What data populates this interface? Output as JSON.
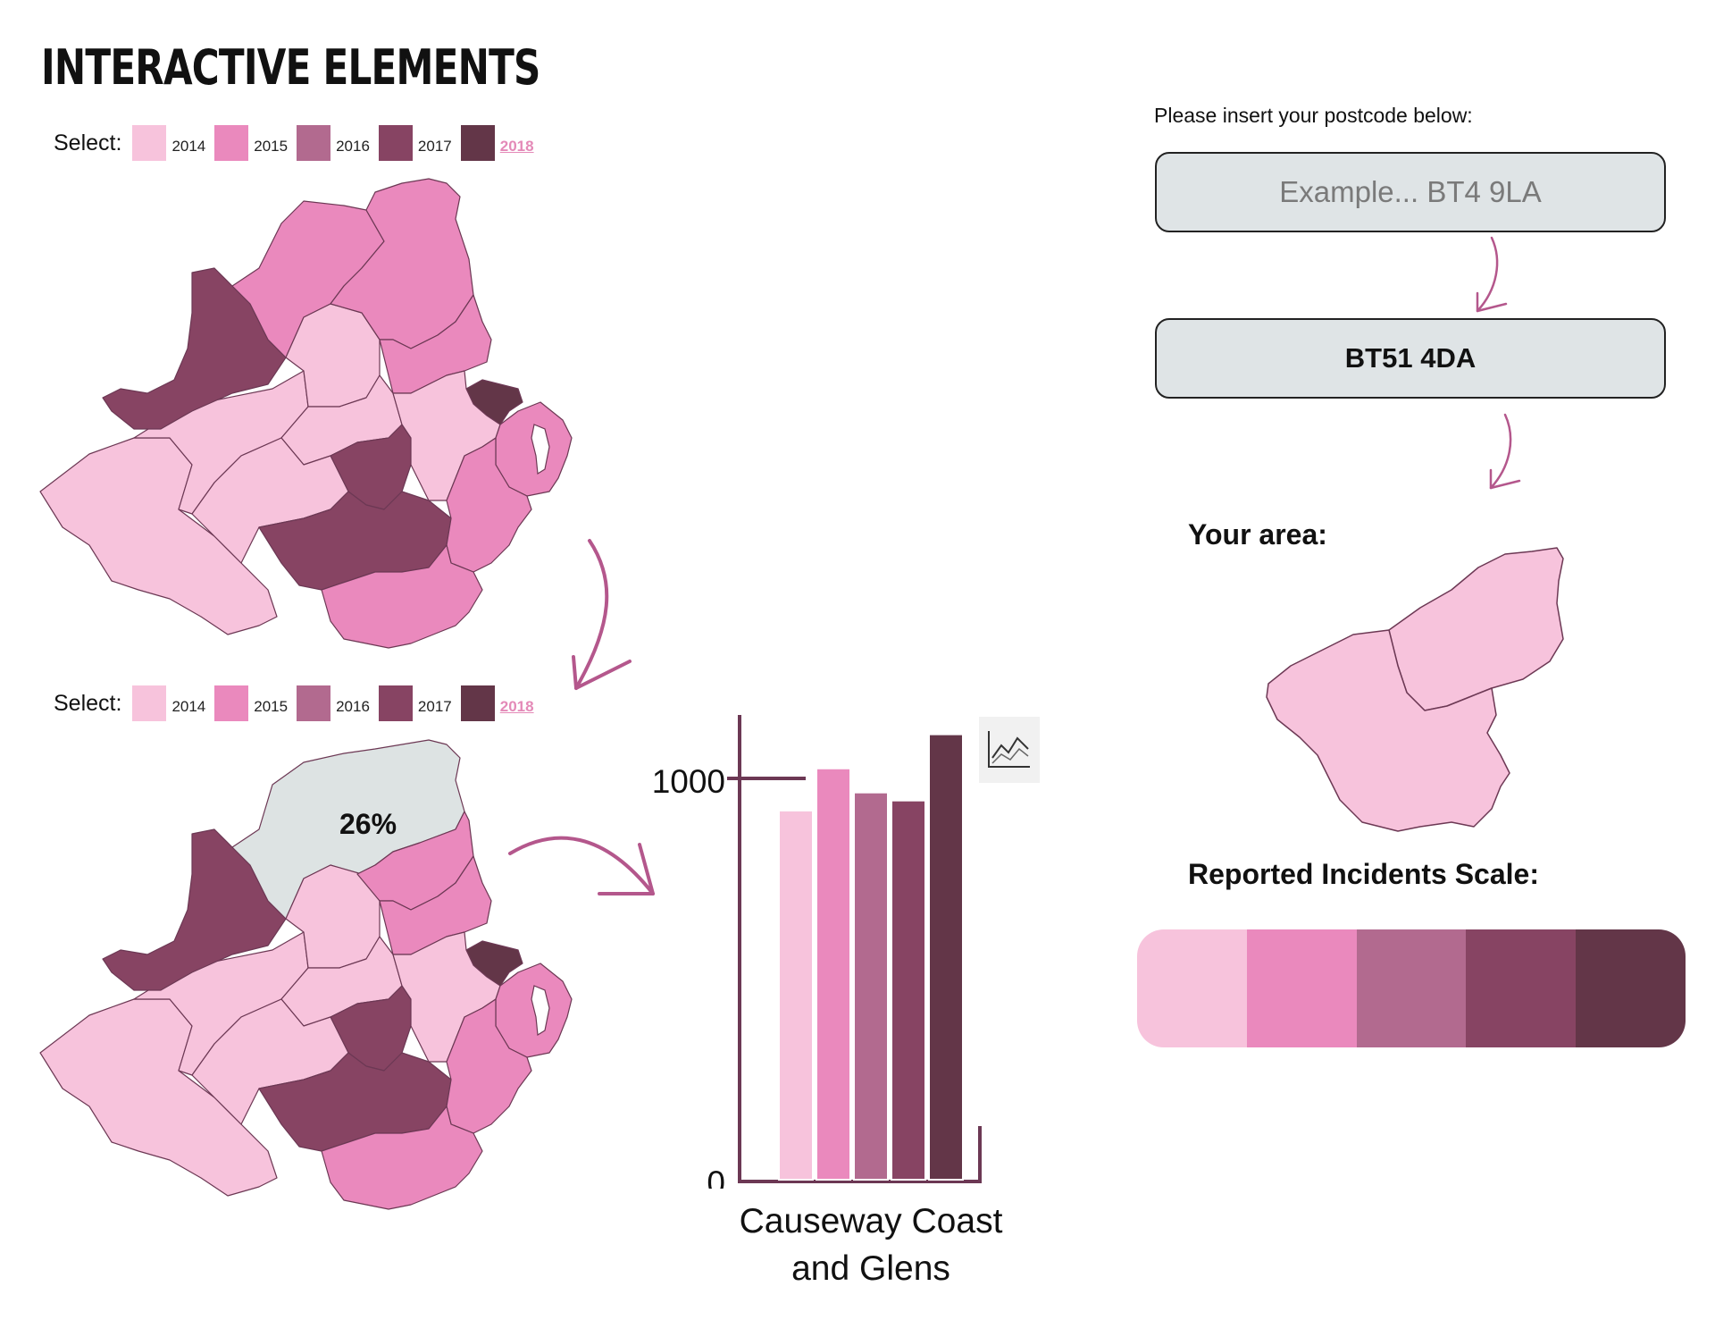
{
  "page": {
    "title": "INTERACTIVE ELEMENTS"
  },
  "colors": {
    "level1": "#f7c3dc",
    "level2": "#ea89bd",
    "level3": "#b26a8f",
    "level4": "#874463",
    "level5": "#633648",
    "highlight": "#dde3e3",
    "border": "#6c3854",
    "arrow": "#b4578c"
  },
  "year_selector": {
    "label": "Select:",
    "options": [
      {
        "year": "2014",
        "color": "#f7c3dc"
      },
      {
        "year": "2015",
        "color": "#ea89bd"
      },
      {
        "year": "2016",
        "color": "#b26a8f"
      },
      {
        "year": "2017",
        "color": "#874463"
      },
      {
        "year": "2018",
        "color": "#633648"
      }
    ],
    "selected": "2018"
  },
  "postcode": {
    "prompt": "Please insert your postcode below:",
    "placeholder": "Example... BT4 9LA",
    "result": "BT51 4DA"
  },
  "area": {
    "heading": "Your area:",
    "highlight_percent": "26%"
  },
  "scale": {
    "heading": "Reported Incidents Scale:",
    "colors": [
      "#f7c3dc",
      "#ea89bd",
      "#b26a8f",
      "#874463",
      "#633648"
    ]
  },
  "chart_data": {
    "type": "bar",
    "categories": [
      "2014",
      "2015",
      "2016",
      "2017",
      "2018"
    ],
    "values": [
      920,
      1025,
      965,
      945,
      1110
    ],
    "colors": [
      "#f7c3dc",
      "#ea89bd",
      "#b26a8f",
      "#874463",
      "#633648"
    ],
    "xlabel": "Causeway Coast and Glens",
    "ylim": [
      0,
      1160
    ],
    "yticks": [
      "0",
      "1000"
    ],
    "reference_line": 1000
  }
}
